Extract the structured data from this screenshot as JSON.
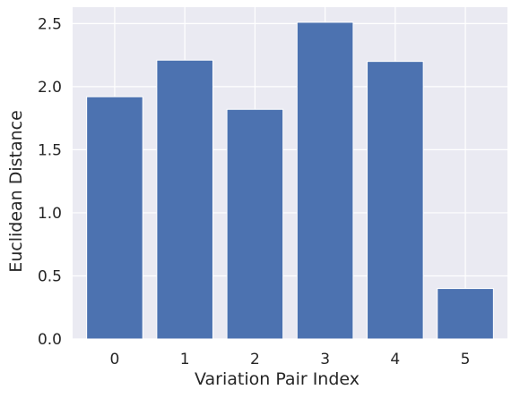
{
  "chart_data": {
    "type": "bar",
    "title": "",
    "xlabel": "Variation Pair Index",
    "ylabel": "Euclidean Distance",
    "categories": [
      "0",
      "1",
      "2",
      "3",
      "4",
      "5"
    ],
    "values": [
      1.92,
      2.21,
      1.82,
      2.51,
      2.2,
      0.4
    ],
    "yticks": [
      "0.0",
      "0.5",
      "1.0",
      "1.5",
      "2.0",
      "2.5"
    ],
    "ylim": [
      0,
      2.63
    ],
    "grid": true,
    "colors": {
      "bar": "#4c72b0",
      "background": "#eaeaf2",
      "grid": "#ffffff"
    }
  }
}
